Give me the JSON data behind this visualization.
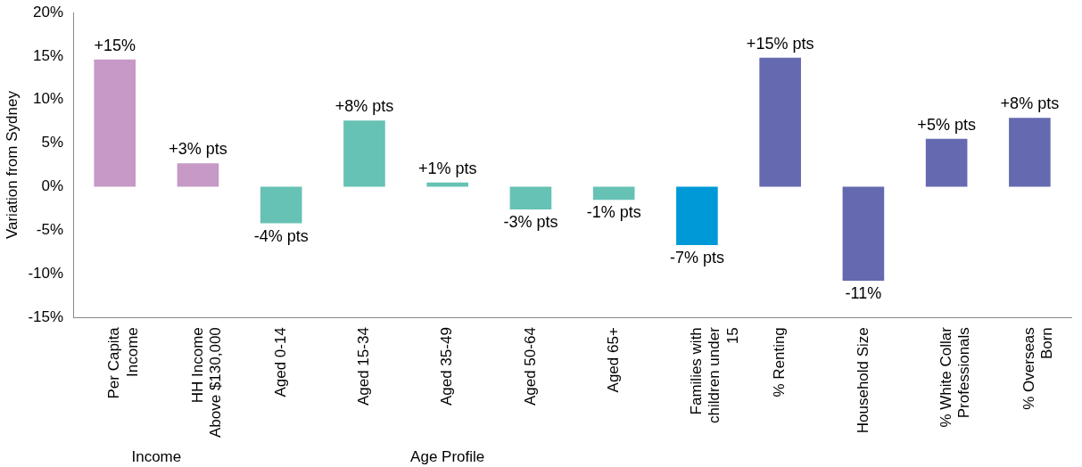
{
  "chart_data": {
    "type": "bar",
    "ylabel": "Variation from Sydney",
    "categories": [
      "Per Capita Income",
      "HH Income Above $130,000",
      "Aged 0-14",
      "Aged 15-34",
      "Aged 35-49",
      "Aged 50-64",
      "Aged 65+",
      "Families with children under 15",
      "% Renting",
      "Household Size",
      "% White Collar Professionals",
      "% Overseas Born"
    ],
    "values": [
      14.6,
      2.7,
      -4.2,
      7.6,
      0.5,
      -2.6,
      -1.5,
      -6.7,
      14.8,
      -10.8,
      5.5,
      7.9
    ],
    "colors": [
      "#c699c6",
      "#c699c6",
      "#66c2b4",
      "#66c2b4",
      "#66c2b4",
      "#66c2b4",
      "#66c2b4",
      "#0099d8",
      "#6569b0",
      "#6569b0",
      "#6569b0",
      "#6569b0"
    ],
    "value_labels": [
      "+15%",
      "+3% pts",
      "-4% pts",
      "+8% pts",
      "+1% pts",
      "-3% pts",
      "-1% pts",
      "-7% pts",
      "+15% pts",
      "-11%",
      "+5% pts",
      "+8% pts"
    ],
    "ylim": [
      -15,
      20
    ],
    "yticks": [
      {
        "value": -15,
        "label": "-15%"
      },
      {
        "value": -10,
        "label": "-10%"
      },
      {
        "value": -5,
        "label": "-5%"
      },
      {
        "value": 0,
        "label": "0%"
      },
      {
        "value": 5,
        "label": "5%"
      },
      {
        "value": 10,
        "label": "10%"
      },
      {
        "value": 15,
        "label": "15%"
      },
      {
        "value": 20,
        "label": "20%"
      }
    ],
    "grid": false,
    "legend": false,
    "annotations": [
      "Income",
      "Age Profile"
    ]
  }
}
